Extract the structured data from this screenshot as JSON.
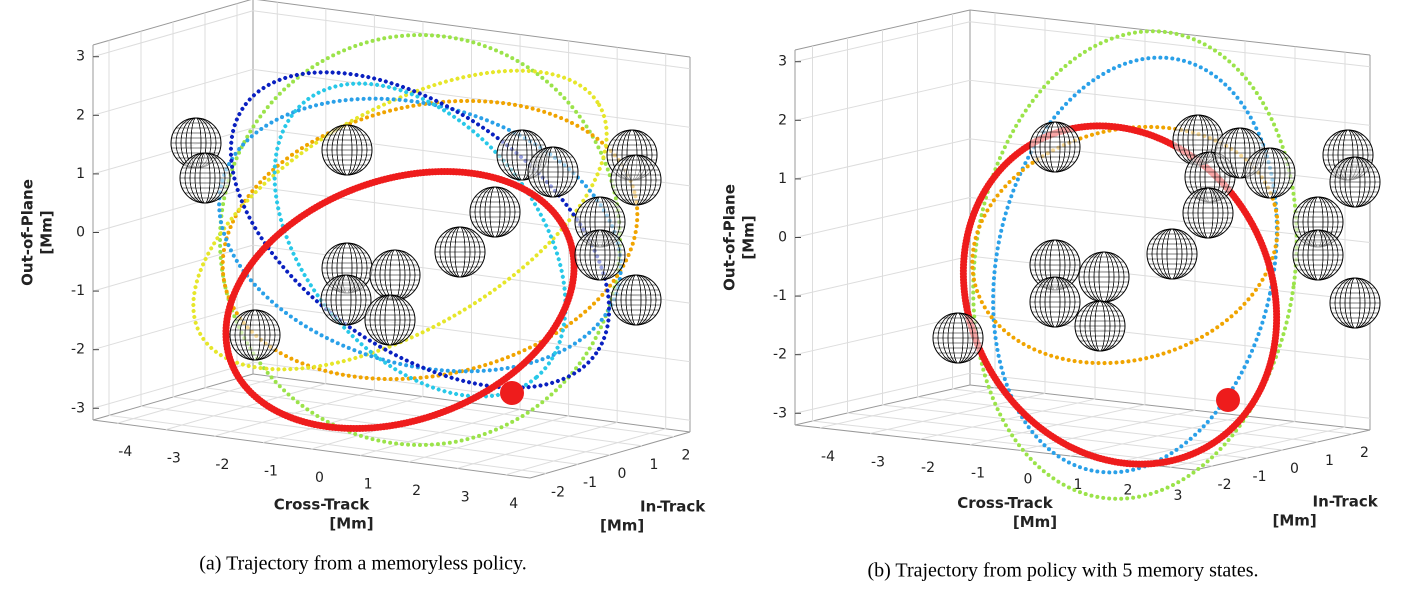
{
  "chart_data": [
    {
      "type": "scatter3d",
      "caption": "(a) Trajectory from a memoryless policy.",
      "xlabel": [
        "Cross-Track",
        "[Mm]"
      ],
      "ylabel": [
        "In-Track",
        "[Mm]"
      ],
      "zlabel": [
        "Out-of-Plane",
        "[Mm]"
      ],
      "xlim": [
        -4.5,
        4.5
      ],
      "xticks": [
        -4,
        -3,
        -2,
        -1,
        0,
        1,
        2,
        3,
        4
      ],
      "ylim": [
        -2.5,
        2.5
      ],
      "yticks": [
        -2,
        -1,
        0,
        1,
        2
      ],
      "zlim": [
        -3.2,
        3.2
      ],
      "zticks": [
        -3,
        -2,
        -1,
        0,
        1,
        2,
        3
      ],
      "grid": true
    },
    {
      "type": "scatter3d",
      "caption": "(b) Trajectory from policy with 5 memory states.",
      "xlabel": [
        "Cross-Track",
        "[Mm]"
      ],
      "ylabel": [
        "In-Track",
        "[Mm]"
      ],
      "zlabel": [
        "Out-of-Plane",
        "[Mm]"
      ],
      "xlim": [
        -4.5,
        3.5
      ],
      "xticks": [
        -4,
        -3,
        -2,
        -1,
        0,
        1,
        2,
        3
      ],
      "ylim": [
        -2.5,
        2.5
      ],
      "yticks": [
        -2,
        -1,
        0,
        1,
        2
      ],
      "zlim": [
        -3.2,
        3.2
      ],
      "zticks": [
        -3,
        -2,
        -1,
        0,
        1,
        2,
        3
      ],
      "grid": true
    }
  ]
}
